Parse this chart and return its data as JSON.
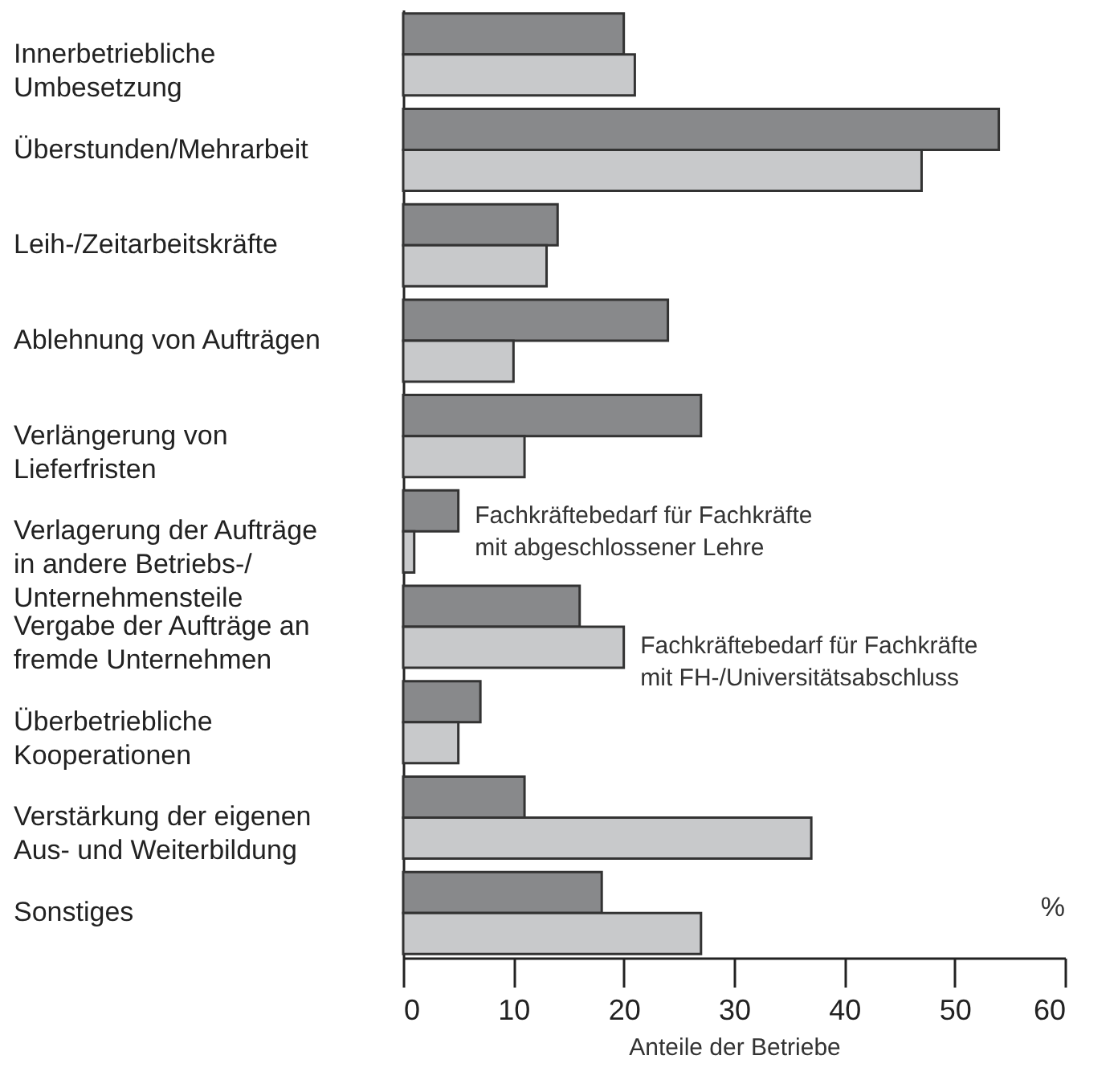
{
  "chart_data": {
    "type": "bar",
    "orientation": "horizontal",
    "xlabel": "Anteile der Betriebe",
    "annotations": [
      "%"
    ],
    "categories": [
      "Innerbetriebliche Umbesetzung",
      "Überstunden/Mehrarbeit",
      "Leih-/Zeitarbeitskräfte",
      "Ablehnung von Aufträgen",
      "Verlängerung von Lieferfristen",
      "Verlagerung der Aufträge in andere Betriebs-/ Unternehmensteile",
      "Vergabe der Aufträge an fremde Unternehmen",
      "Überbetriebliche Kooperationen",
      "Verstärkung der eigenen Aus- und Weiterbildung",
      "Sonstiges"
    ],
    "series": [
      {
        "name": "Fachkräftebedarf für Fachkräfte mit abgeschlossener Lehre",
        "color": "#88898b",
        "values": [
          20,
          54,
          14,
          24,
          27,
          5,
          16,
          7,
          11,
          18
        ]
      },
      {
        "name": "Fachkräftebedarf für Fachkräfte mit FH-/Universitätsabschluss",
        "color": "#c8c9cb",
        "values": [
          21,
          47,
          13,
          10,
          11,
          1,
          20,
          5,
          37,
          27
        ]
      }
    ],
    "xlim": [
      0,
      60
    ],
    "xticks": [
      0,
      10,
      20,
      30,
      40,
      50,
      60
    ],
    "grid": false
  }
}
